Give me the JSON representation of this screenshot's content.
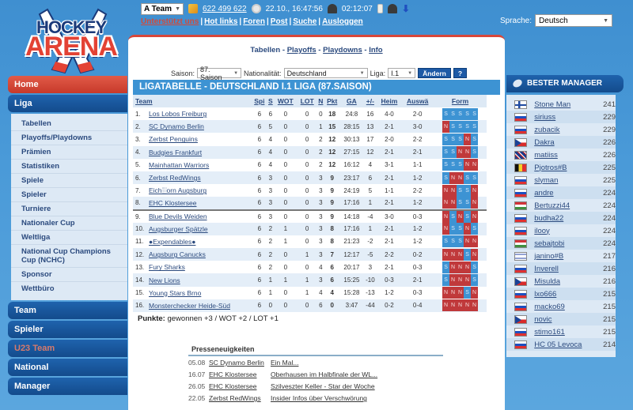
{
  "logo": {
    "line1": "HOCKEY",
    "line2": "ARENA"
  },
  "topbar": {
    "team_select": "A Team",
    "money": "622 499 622",
    "datetime": "22.10., 16:47:56",
    "timer": "02:12:07"
  },
  "subnav": {
    "links": [
      "Unterstützt uns",
      "Hot links",
      "Foren",
      "Post",
      "Suche",
      "Ausloggen"
    ]
  },
  "language": {
    "label": "Sprache:",
    "value": "Deutsch"
  },
  "sidebar": {
    "home": "Home",
    "liga": "Liga",
    "liga_items": [
      "Tabellen",
      "Playoffs/Playdowns",
      "Prämien",
      "Statistiken",
      "Spiele",
      "Spieler",
      "Turniere",
      "Nationaler Cup",
      "Weltliga",
      "National Cup Champions Cup (NCHC)",
      "Sponsor",
      "Wettbüro"
    ],
    "team": "Team",
    "spieler": "Spieler",
    "u23": "U23 Team",
    "national": "National",
    "manager": "Manager"
  },
  "main": {
    "tabs": {
      "current": "Tabellen",
      "sep": " - ",
      "playoffs": "Playoffs",
      "playdowns": "Playdowns",
      "info": "Info"
    },
    "filters": {
      "season_label": "Saison:",
      "season_value": "87. Saison",
      "nationality_label": "Nationalität:",
      "nationality_value": "Deutschland",
      "league_label": "Liga:",
      "league_value": "I.1",
      "change_button": "Ändern",
      "help_button": "?"
    },
    "table_title": "LIGATABELLE - DEUTSCHLAND I.1 LIGA (87.SAISON)",
    "columns": [
      "Team",
      "Spi",
      "S",
      "WOT",
      "LOT",
      "N",
      "Pkt",
      "GA",
      "+/-",
      "Heim",
      "Auswä",
      "Form"
    ],
    "rows": [
      {
        "rank": "1.",
        "team": "Los Lobos Freiburg",
        "spi": "6",
        "s": "6",
        "wot": "0",
        "lot": "0",
        "n": "0",
        "pkt": "18",
        "ga": "24:8",
        "diff": "16",
        "heim": "4-0",
        "ausw": "2-0",
        "form": [
          "S",
          "S",
          "S",
          "S",
          "S"
        ]
      },
      {
        "rank": "2.",
        "team": "SC Dynamo Berlin",
        "spi": "6",
        "s": "5",
        "wot": "0",
        "lot": "0",
        "n": "1",
        "pkt": "15",
        "ga": "28:15",
        "diff": "13",
        "heim": "2-1",
        "ausw": "3-0",
        "form": [
          "N",
          "S",
          "S",
          "S",
          "S"
        ]
      },
      {
        "rank": "3.",
        "team": "Zerbst Penguins",
        "spi": "6",
        "s": "4",
        "wot": "0",
        "lot": "0",
        "n": "2",
        "pkt": "12",
        "ga": "30:13",
        "diff": "17",
        "heim": "2-0",
        "ausw": "2-2",
        "form": [
          "S",
          "S",
          "S",
          "N",
          "S"
        ]
      },
      {
        "rank": "4.",
        "team": "Budgies Frankfurt",
        "spi": "6",
        "s": "4",
        "wot": "0",
        "lot": "0",
        "n": "2",
        "pkt": "12",
        "ga": "27:15",
        "diff": "12",
        "heim": "2-1",
        "ausw": "2-1",
        "form": [
          "S",
          "S",
          "N",
          "N",
          "S"
        ]
      },
      {
        "rank": "5.",
        "team": "Mainhattan Warriors",
        "spi": "6",
        "s": "4",
        "wot": "0",
        "lot": "0",
        "n": "2",
        "pkt": "12",
        "ga": "16:12",
        "diff": "4",
        "heim": "3-1",
        "ausw": "1-1",
        "form": [
          "S",
          "S",
          "S",
          "N",
          "N"
        ]
      },
      {
        "rank": "6.",
        "team": "Zerbst RedWings",
        "spi": "6",
        "s": "3",
        "wot": "0",
        "lot": "0",
        "n": "3",
        "pkt": "9",
        "ga": "23:17",
        "diff": "6",
        "heim": "2-1",
        "ausw": "1-2",
        "form": [
          "S",
          "N",
          "N",
          "S",
          "S"
        ]
      },
      {
        "rank": "7.",
        "team": "Eich░orn Augsburg",
        "spi": "6",
        "s": "3",
        "wot": "0",
        "lot": "0",
        "n": "3",
        "pkt": "9",
        "ga": "24:19",
        "diff": "5",
        "heim": "1-1",
        "ausw": "2-2",
        "form": [
          "N",
          "N",
          "S",
          "S",
          "N"
        ]
      },
      {
        "rank": "8.",
        "team": "EHC Klostersee",
        "spi": "6",
        "s": "3",
        "wot": "0",
        "lot": "0",
        "n": "3",
        "pkt": "9",
        "ga": "17:16",
        "diff": "1",
        "heim": "2-1",
        "ausw": "1-2",
        "form": [
          "N",
          "N",
          "S",
          "S",
          "N"
        ]
      },
      {
        "rank": "9.",
        "team": "Blue Devils Weiden",
        "spi": "6",
        "s": "3",
        "wot": "0",
        "lot": "0",
        "n": "3",
        "pkt": "9",
        "ga": "14:18",
        "diff": "-4",
        "heim": "3-0",
        "ausw": "0-3",
        "form": [
          "N",
          "S",
          "N",
          "S",
          "N"
        ]
      },
      {
        "rank": "10.",
        "team": "Augsburger Spätzle",
        "spi": "6",
        "s": "2",
        "wot": "1",
        "lot": "0",
        "n": "3",
        "pkt": "8",
        "ga": "17:16",
        "diff": "1",
        "heim": "2-1",
        "ausw": "1-2",
        "form": [
          "N",
          "S",
          "S",
          "N",
          "S"
        ]
      },
      {
        "rank": "11.",
        "team": "●Expendables●",
        "spi": "6",
        "s": "2",
        "wot": "1",
        "lot": "0",
        "n": "3",
        "pkt": "8",
        "ga": "21:23",
        "diff": "-2",
        "heim": "2-1",
        "ausw": "1-2",
        "form": [
          "S",
          "S",
          "S",
          "N",
          "N"
        ]
      },
      {
        "rank": "12.",
        "team": "Augsburg Canucks",
        "spi": "6",
        "s": "2",
        "wot": "0",
        "lot": "1",
        "n": "3",
        "pkt": "7",
        "ga": "12:17",
        "diff": "-5",
        "heim": "2-2",
        "ausw": "0-2",
        "form": [
          "N",
          "N",
          "N",
          "S",
          "N"
        ]
      },
      {
        "rank": "13.",
        "team": "Fury Sharks",
        "spi": "6",
        "s": "2",
        "wot": "0",
        "lot": "0",
        "n": "4",
        "pkt": "6",
        "ga": "20:17",
        "diff": "3",
        "heim": "2-1",
        "ausw": "0-3",
        "form": [
          "S",
          "N",
          "N",
          "N",
          "S"
        ]
      },
      {
        "rank": "14.",
        "team": "New Lions",
        "spi": "6",
        "s": "1",
        "wot": "1",
        "lot": "1",
        "n": "3",
        "pkt": "6",
        "ga": "15:25",
        "diff": "-10",
        "heim": "0-3",
        "ausw": "2-1",
        "form": [
          "S",
          "N",
          "N",
          "N",
          "S"
        ]
      },
      {
        "rank": "15.",
        "team": "Young Stars Brno",
        "spi": "6",
        "s": "1",
        "wot": "0",
        "lot": "1",
        "n": "4",
        "pkt": "4",
        "ga": "15:28",
        "diff": "-13",
        "heim": "1-2",
        "ausw": "0-3",
        "form": [
          "N",
          "N",
          "N",
          "S",
          "N"
        ]
      },
      {
        "rank": "16.",
        "team": "Monsterchecker Heide-Süd",
        "spi": "6",
        "s": "0",
        "wot": "0",
        "lot": "0",
        "n": "6",
        "pkt": "0",
        "ga": "3:47",
        "diff": "-44",
        "heim": "0-2",
        "ausw": "0-4",
        "form": [
          "N",
          "N",
          "N",
          "N",
          "N"
        ]
      }
    ],
    "points_label": "Punkte:",
    "points_text": " gewonnen +3 / WOT +2 / LOT +1",
    "press": {
      "title": "Presseneuigkeiten",
      "items": [
        {
          "date": "05.08",
          "team": "SC Dynamo Berlin",
          "headline": "Ein Mal..."
        },
        {
          "date": "16.07",
          "team": "EHC Klostersee",
          "headline": "Oberhausen im Halbfinale der WL..."
        },
        {
          "date": "26.05",
          "team": "EHC Klostersee",
          "headline": "Szilveszter Keller - Star der Woche"
        },
        {
          "date": "22.05",
          "team": "Zerbst RedWings",
          "headline": "Insider Infos über Verschwörung"
        }
      ]
    }
  },
  "best_managers": {
    "title": "BESTER MANAGER",
    "items": [
      {
        "flag": "fi",
        "name": "Stone Man",
        "points": "241"
      },
      {
        "flag": "sk",
        "name": "siriuss",
        "points": "229"
      },
      {
        "flag": "sk",
        "name": "zubacik",
        "points": "229"
      },
      {
        "flag": "cz",
        "name": "Dakra",
        "points": "226"
      },
      {
        "flag": "gb",
        "name": "matiiss",
        "points": "226"
      },
      {
        "flag": "be",
        "name": "Pjotros#B",
        "points": "225"
      },
      {
        "flag": "sk",
        "name": "slyman",
        "points": "225"
      },
      {
        "flag": "sk",
        "name": "andre",
        "points": "224"
      },
      {
        "flag": "hu",
        "name": "Bertuzzi44",
        "points": "224"
      },
      {
        "flag": "sk",
        "name": "budha22",
        "points": "224"
      },
      {
        "flag": "sk",
        "name": "ilooy",
        "points": "224"
      },
      {
        "flag": "hu",
        "name": "sebajtobi",
        "points": "224"
      },
      {
        "flag": "il",
        "name": "janino#B",
        "points": "217"
      },
      {
        "flag": "sk",
        "name": "Inverell",
        "points": "216"
      },
      {
        "flag": "cz",
        "name": "Misulda",
        "points": "216"
      },
      {
        "flag": "sk",
        "name": "lxo666",
        "points": "215"
      },
      {
        "flag": "sk",
        "name": "macko69",
        "points": "215"
      },
      {
        "flag": "cz",
        "name": "novic",
        "points": "215"
      },
      {
        "flag": "sk",
        "name": "stimo161",
        "points": "215"
      },
      {
        "flag": "sk",
        "name": "HC 05 Levoca",
        "points": "214"
      }
    ]
  }
}
